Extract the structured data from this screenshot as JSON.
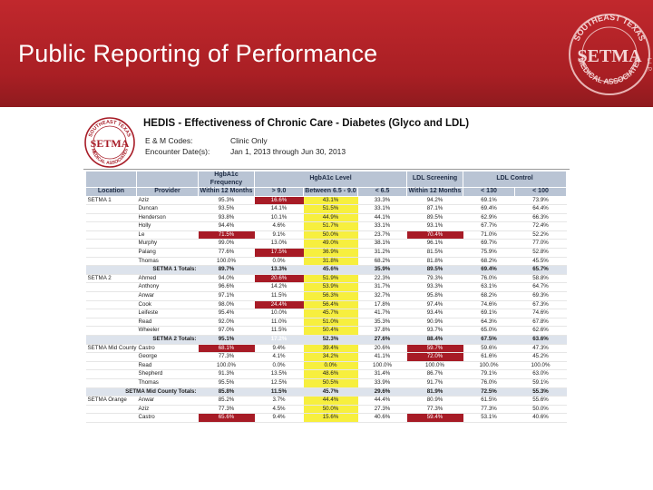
{
  "slide": {
    "title": "Public Reporting of Performance",
    "logo_text": {
      "top": "SOUTHEAST TEXAS",
      "main": "SETMA",
      "bottom": "MEDICAL ASSOCIATES",
      "side": "L.L.P."
    }
  },
  "document": {
    "logo_text": {
      "top": "SOUTHEAST TEXAS",
      "main": "SETMA",
      "bottom": "MEDICAL ASSOCIATES"
    },
    "title": "HEDIS - Effectiveness of Chronic Care - Diabetes (Glyco and LDL)",
    "em_codes_label": "E & M Codes:",
    "em_codes_value": "Clinic Only",
    "encounter_label": "Encounter Date(s):",
    "encounter_value": "Jan 1, 2013 through Jun 30, 2013"
  },
  "colors": {
    "header": "#b1232a",
    "red_cell": "#a71b26",
    "yellow_cell": "#f7ef3e",
    "table_header": "#b9c4d4"
  },
  "table": {
    "group_headers": {
      "freq": "HgbA1c Frequency",
      "level": "HgbA1c Level",
      "ldl_screen": "LDL Screening",
      "ldl_control": "LDL Control"
    },
    "col_headers": [
      "Location",
      "Provider",
      "Within 12 Months",
      "> 9.0",
      "Between 6.5 - 9.0",
      "< 6.5",
      "Within 12 Months",
      "< 130",
      "< 100"
    ],
    "rows": [
      {
        "loc": "SETMA 1",
        "prov": "Aziz",
        "v": [
          "95.3%",
          "16.6%",
          "43.1%",
          "33.3%",
          "94.2%",
          "69.1%",
          "73.9%"
        ],
        "red": [
          1
        ],
        "yellow": [
          2
        ]
      },
      {
        "loc": "",
        "prov": "Duncan",
        "v": [
          "93.5%",
          "14.1%",
          "51.5%",
          "33.1%",
          "87.1%",
          "69.4%",
          "64.4%"
        ],
        "red": [],
        "yellow": [
          2
        ]
      },
      {
        "loc": "",
        "prov": "Henderson",
        "v": [
          "93.8%",
          "10.1%",
          "44.9%",
          "44.1%",
          "89.5%",
          "62.9%",
          "66.3%"
        ],
        "red": [],
        "yellow": [
          2
        ]
      },
      {
        "loc": "",
        "prov": "Holly",
        "v": [
          "94.4%",
          "4.6%",
          "51.7%",
          "33.1%",
          "93.1%",
          "67.7%",
          "72.4%"
        ],
        "red": [],
        "yellow": [
          2
        ]
      },
      {
        "loc": "",
        "prov": "Le",
        "v": [
          "71.5%",
          "9.1%",
          "50.0%",
          "23.7%",
          "70.4%",
          "71.0%",
          "52.2%"
        ],
        "red": [
          0,
          4
        ],
        "yellow": [
          2
        ]
      },
      {
        "loc": "",
        "prov": "Murphy",
        "v": [
          "99.0%",
          "13.0%",
          "49.0%",
          "38.1%",
          "96.1%",
          "69.7%",
          "77.0%"
        ],
        "red": [],
        "yellow": [
          2
        ]
      },
      {
        "loc": "",
        "prov": "Palang",
        "v": [
          "77.6%",
          "17.5%",
          "36.9%",
          "31.2%",
          "81.5%",
          "75.9%",
          "52.8%"
        ],
        "red": [
          1
        ],
        "yellow": [
          2
        ]
      },
      {
        "loc": "",
        "prov": "Thomas",
        "v": [
          "100.0%",
          "0.0%",
          "31.8%",
          "68.2%",
          "81.8%",
          "68.2%",
          "45.5%"
        ],
        "red": [],
        "yellow": [
          2
        ]
      },
      {
        "total": true,
        "label": "SETMA 1 Totals:",
        "v": [
          "89.7%",
          "13.3%",
          "45.6%",
          "35.9%",
          "89.5%",
          "69.4%",
          "65.7%"
        ],
        "red": [],
        "yellow": [
          2
        ]
      },
      {
        "loc": "SETMA 2",
        "prov": "Ahmed",
        "v": [
          "94.0%",
          "20.6%",
          "51.9%",
          "22.3%",
          "79.3%",
          "76.0%",
          "58.8%"
        ],
        "red": [
          1
        ],
        "yellow": [
          2
        ]
      },
      {
        "loc": "",
        "prov": "Anthony",
        "v": [
          "96.6%",
          "14.2%",
          "53.9%",
          "31.7%",
          "93.3%",
          "63.1%",
          "64.7%"
        ],
        "red": [],
        "yellow": [
          2
        ]
      },
      {
        "loc": "",
        "prov": "Anwar",
        "v": [
          "97.1%",
          "11.5%",
          "56.3%",
          "32.7%",
          "95.8%",
          "68.2%",
          "69.3%"
        ],
        "red": [],
        "yellow": [
          2
        ]
      },
      {
        "loc": "",
        "prov": "Cook",
        "v": [
          "98.0%",
          "24.4%",
          "56.4%",
          "17.8%",
          "97.4%",
          "74.6%",
          "67.3%"
        ],
        "red": [
          1
        ],
        "yellow": [
          2
        ]
      },
      {
        "loc": "",
        "prov": "Leifeste",
        "v": [
          "95.4%",
          "10.0%",
          "45.7%",
          "41.7%",
          "93.4%",
          "69.1%",
          "74.6%"
        ],
        "red": [],
        "yellow": [
          2
        ]
      },
      {
        "loc": "",
        "prov": "Read",
        "v": [
          "92.0%",
          "11.0%",
          "51.0%",
          "35.3%",
          "90.9%",
          "64.3%",
          "67.8%"
        ],
        "red": [],
        "yellow": [
          2
        ]
      },
      {
        "loc": "",
        "prov": "Wheeler",
        "v": [
          "97.0%",
          "11.5%",
          "50.4%",
          "37.8%",
          "93.7%",
          "65.0%",
          "62.6%"
        ],
        "red": [],
        "yellow": [
          2
        ]
      },
      {
        "total": true,
        "label": "SETMA 2 Totals:",
        "v": [
          "95.1%",
          "17.2%",
          "52.3%",
          "27.6%",
          "88.4%",
          "67.5%",
          "63.6%"
        ],
        "red": [
          1
        ],
        "yellow": [
          2
        ]
      },
      {
        "loc": "SETMA Mid County",
        "prov": "Castro",
        "v": [
          "68.1%",
          "9.4%",
          "39.4%",
          "20.6%",
          "59.7%",
          "59.6%",
          "47.3%"
        ],
        "red": [
          0,
          4
        ],
        "yellow": [
          2
        ]
      },
      {
        "loc": "",
        "prov": "George",
        "v": [
          "77.3%",
          "4.1%",
          "34.2%",
          "41.1%",
          "72.0%",
          "61.6%",
          "45.2%"
        ],
        "red": [
          4
        ],
        "yellow": [
          2
        ]
      },
      {
        "loc": "",
        "prov": "Read",
        "v": [
          "100.0%",
          "0.0%",
          "0.0%",
          "100.0%",
          "100.0%",
          "100.0%",
          "100.0%"
        ],
        "red": [],
        "yellow": [
          2
        ]
      },
      {
        "loc": "",
        "prov": "Shepherd",
        "v": [
          "91.3%",
          "13.5%",
          "48.6%",
          "31.4%",
          "86.7%",
          "79.1%",
          "63.0%"
        ],
        "red": [],
        "yellow": [
          2
        ]
      },
      {
        "loc": "",
        "prov": "Thomas",
        "v": [
          "95.5%",
          "12.5%",
          "50.5%",
          "33.9%",
          "91.7%",
          "76.0%",
          "59.1%"
        ],
        "red": [],
        "yellow": [
          2
        ]
      },
      {
        "total": true,
        "label": "SETMA Mid County Totals:",
        "v": [
          "85.8%",
          "11.5%",
          "45.7%",
          "29.6%",
          "81.9%",
          "72.5%",
          "55.3%"
        ],
        "red": [],
        "yellow": [
          2
        ]
      },
      {
        "loc": "SETMA Orange",
        "prov": "Anwar",
        "v": [
          "85.2%",
          "3.7%",
          "44.4%",
          "44.4%",
          "80.9%",
          "61.5%",
          "55.6%"
        ],
        "red": [],
        "yellow": [
          2
        ]
      },
      {
        "loc": "",
        "prov": "Aziz",
        "v": [
          "77.3%",
          "4.5%",
          "50.0%",
          "27.3%",
          "77.3%",
          "77.3%",
          "50.0%"
        ],
        "red": [],
        "yellow": [
          2
        ]
      },
      {
        "loc": "",
        "prov": "Castro",
        "v": [
          "65.6%",
          "9.4%",
          "15.6%",
          "40.6%",
          "59.4%",
          "53.1%",
          "40.6%"
        ],
        "red": [
          0,
          4
        ],
        "yellow": [
          2
        ]
      }
    ]
  }
}
